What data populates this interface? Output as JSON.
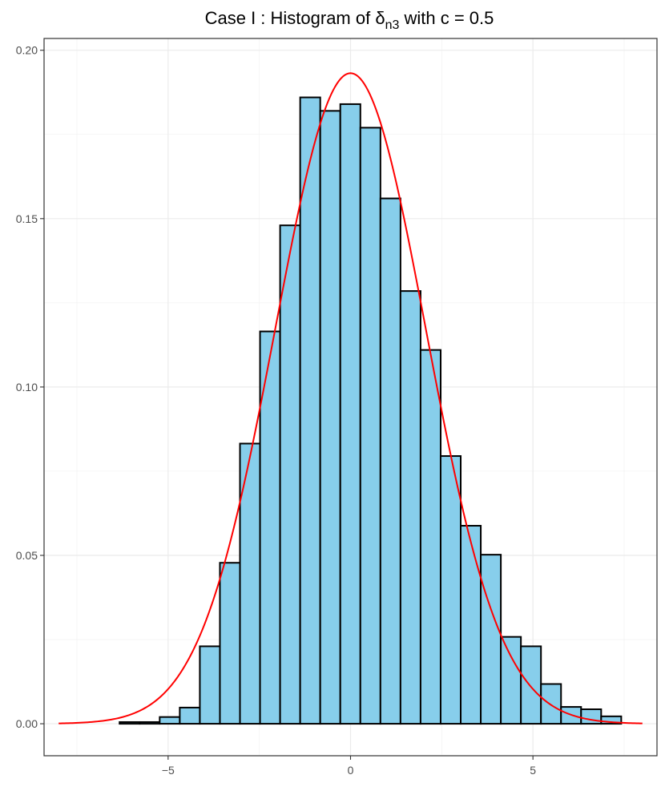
{
  "chart_data": {
    "type": "bar",
    "title": {
      "prefix": "Case I :  Histogram of ",
      "symbol": "δ",
      "subscript": "n3",
      "suffix": " with c = 0.5"
    },
    "xlabel": "",
    "ylabel": "",
    "xlim": [
      -8.4,
      8.4
    ],
    "ylim": [
      -0.0095,
      0.2035
    ],
    "x_ticks": [
      -5,
      0,
      5
    ],
    "x_tick_labels": [
      "−5",
      "0",
      "5"
    ],
    "y_ticks": [
      0.0,
      0.05,
      0.1,
      0.15,
      0.2
    ],
    "y_tick_labels": [
      "0.00",
      "0.05",
      "0.10",
      "0.15",
      "0.20"
    ],
    "grid": true,
    "bin_width": 0.55,
    "bin_starts": [
      -6.33,
      -5.78,
      -5.23,
      -4.68,
      -4.13,
      -3.58,
      -3.03,
      -2.48,
      -1.93,
      -1.38,
      -0.83,
      -0.28,
      0.27,
      0.82,
      1.37,
      1.92,
      2.47,
      3.02,
      3.57,
      4.12,
      4.67,
      5.22,
      5.77,
      6.32,
      6.87
    ],
    "bar_values": [
      0.0005,
      0.0005,
      0.002,
      0.0048,
      0.023,
      0.0478,
      0.0832,
      0.1165,
      0.148,
      0.186,
      0.182,
      0.184,
      0.177,
      0.156,
      0.1285,
      0.111,
      0.0795,
      0.0588,
      0.0502,
      0.0258,
      0.023,
      0.0118,
      0.005,
      0.0043,
      0.0022
    ],
    "bar_fill": "#87ceeb",
    "bar_outline": "#000000",
    "density_curve": {
      "type": "normal",
      "mean": 0.0,
      "sd": 2.065,
      "x_range": [
        -8,
        8
      ],
      "color": "#ff0000"
    }
  }
}
